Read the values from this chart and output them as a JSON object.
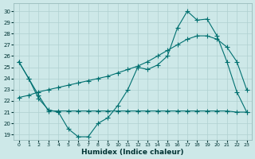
{
  "xlabel": "Humidex (Indice chaleur)",
  "background_color": "#cde8e8",
  "grid_color": "#b0d0d0",
  "line_color": "#007070",
  "ylim": [
    18.5,
    30.7
  ],
  "xlim": [
    -0.5,
    23.5
  ],
  "yticks": [
    19,
    20,
    21,
    22,
    23,
    24,
    25,
    26,
    27,
    28,
    29,
    30
  ],
  "xticks": [
    0,
    1,
    2,
    3,
    4,
    5,
    6,
    7,
    8,
    9,
    10,
    11,
    12,
    13,
    14,
    15,
    16,
    17,
    18,
    19,
    20,
    21,
    22,
    23
  ],
  "line1_x": [
    0,
    1,
    2,
    3,
    4,
    5,
    6,
    7,
    8,
    9,
    10,
    11,
    12,
    13,
    14,
    15,
    16,
    17,
    18,
    19,
    20,
    21,
    22,
    23
  ],
  "line1_y": [
    25.5,
    24.0,
    22.2,
    21.2,
    21.0,
    19.5,
    18.8,
    18.8,
    20.0,
    20.5,
    21.6,
    23.0,
    25.0,
    24.8,
    25.2,
    26.0,
    28.5,
    30.0,
    29.2,
    29.3,
    27.8,
    25.5,
    22.8,
    21.0
  ],
  "line2_x": [
    0,
    1,
    2,
    3,
    4,
    5,
    6,
    7,
    8,
    9,
    10,
    11,
    12,
    13,
    14,
    15,
    16,
    17,
    18,
    19,
    20,
    21,
    22,
    23
  ],
  "line2_y": [
    25.5,
    24.0,
    22.5,
    21.1,
    21.1,
    21.1,
    21.1,
    21.1,
    21.1,
    21.1,
    21.1,
    21.1,
    21.1,
    21.1,
    21.1,
    21.1,
    21.1,
    21.1,
    21.1,
    21.1,
    21.1,
    21.1,
    21.0,
    21.0
  ],
  "line3_x": [
    0,
    1,
    2,
    3,
    4,
    5,
    6,
    7,
    8,
    9,
    10,
    11,
    12,
    13,
    14,
    15,
    16,
    17,
    18,
    19,
    20,
    21,
    22,
    23
  ],
  "line3_y": [
    22.3,
    22.5,
    22.8,
    23.0,
    23.2,
    23.4,
    23.6,
    23.8,
    24.0,
    24.2,
    24.5,
    24.8,
    25.1,
    25.5,
    26.0,
    26.5,
    27.0,
    27.5,
    27.8,
    27.8,
    27.5,
    26.8,
    25.5,
    23.0
  ]
}
